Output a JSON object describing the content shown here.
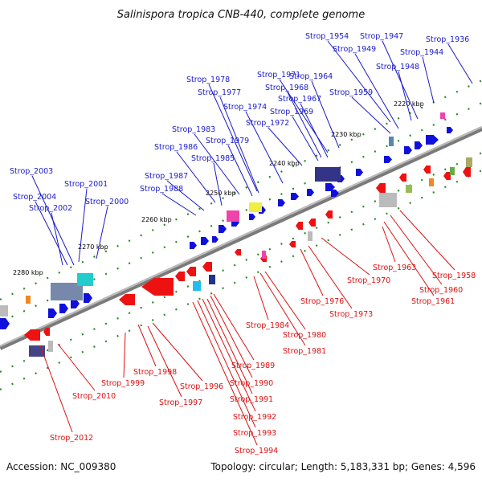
{
  "title": "Salinispora tropica CNB-440, complete genome",
  "footer": {
    "accession": "Accession: NC_009380",
    "summary": "Topology: circular; Length: 5,183,331 bp; Genes: 4,596"
  },
  "colors": {
    "forward": "#1a1acc",
    "reverse": "#dd1111",
    "backbone": "#808080",
    "ticks": "#228822"
  },
  "ticks": [
    "2220 kbp",
    "2230 kbp",
    "2240 kbp",
    "2250 kbp",
    "2260 kbp",
    "2270 kbp",
    "2280 kbp"
  ],
  "forward_labels": [
    "Strop_1954",
    "Strop_1947",
    "Strop_1936",
    "Strop_1949",
    "Strop_1944",
    "Strop_1948",
    "Strop_1971",
    "Strop_1964",
    "Strop_1978",
    "Strop_1968",
    "Strop_1977",
    "Strop_1967",
    "Strop_1959",
    "Strop_1974",
    "Strop_1969",
    "Strop_1972",
    "Strop_1983",
    "Strop_1979",
    "Strop_1986",
    "Strop_1985",
    "Strop_2003",
    "Strop_1987",
    "Strop_2001",
    "Strop_1988",
    "Strop_2004",
    "Strop_2000",
    "Strop_2002"
  ],
  "reverse_labels": [
    "Strop_1963",
    "Strop_1958",
    "Strop_1970",
    "Strop_1960",
    "Strop_1976",
    "Strop_1961",
    "Strop_1973",
    "Strop_1984",
    "Strop_1980",
    "Strop_1981",
    "Strop_1989",
    "Strop_1998",
    "Strop_1990",
    "Strop_1999",
    "Strop_1996",
    "Strop_2010",
    "Strop_1991",
    "Strop_1997",
    "Strop_1992",
    "Strop_1993",
    "Strop_2012",
    "Strop_1994"
  ]
}
